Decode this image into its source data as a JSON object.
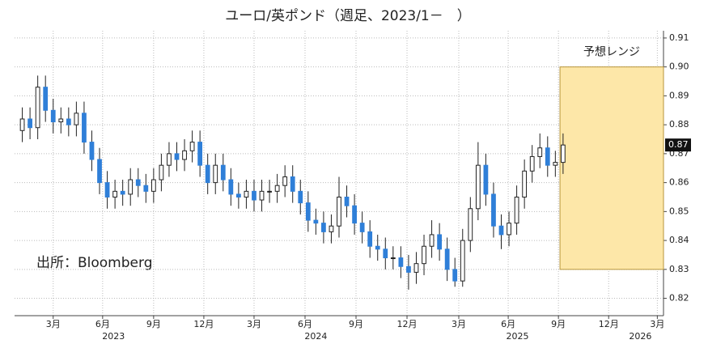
{
  "chart_data": {
    "type": "candlestick",
    "title": "ユーロ/英ポンド（週足、2023/1－　）",
    "source": "出所：Bloomberg",
    "up_color": "#ffffff",
    "down_color": "#2f7fd8",
    "xlim": [
      -1,
      83
    ],
    "xticks": [
      {
        "value": 4.0,
        "label": "3月"
      },
      {
        "value": 10.4,
        "label": "6月"
      },
      {
        "value": 17.0,
        "label": "9月"
      },
      {
        "value": 23.5,
        "label": "12月"
      },
      {
        "value": 30.0,
        "label": "3月"
      },
      {
        "value": 36.6,
        "label": "6月"
      },
      {
        "value": 43.2,
        "label": "9月"
      },
      {
        "value": 49.8,
        "label": "12月"
      },
      {
        "value": 56.5,
        "label": "3月"
      },
      {
        "value": 62.9,
        "label": "6月"
      },
      {
        "value": 69.4,
        "label": "9月"
      },
      {
        "value": 75.9,
        "label": "12月"
      },
      {
        "value": 82.2,
        "label": "3月"
      }
    ],
    "year_ticks": [
      {
        "value": 11.8,
        "label": "2023"
      },
      {
        "value": 38.0,
        "label": "2024"
      },
      {
        "value": 64.1,
        "label": "2025"
      },
      {
        "value": 80.0,
        "label": "2026"
      }
    ],
    "ylim": [
      0.814,
      0.9125
    ],
    "yticks": [
      0.82,
      0.83,
      0.84,
      0.85,
      0.86,
      0.87,
      0.88,
      0.89,
      {
        "value": 0.9,
        "label": "0.90"
      },
      0.91
    ],
    "grid": true,
    "open": [
      0.878,
      0.882,
      0.879,
      0.893,
      0.885,
      0.881,
      0.882,
      0.88,
      0.884,
      0.874,
      0.868,
      0.86,
      0.855,
      0.857,
      0.856,
      0.861,
      0.859,
      0.857,
      0.861,
      0.866,
      0.87,
      0.868,
      0.871,
      0.874,
      0.866,
      0.86,
      0.866,
      0.861,
      0.856,
      0.855,
      0.857,
      0.854,
      0.857,
      0.857,
      0.859,
      0.862,
      0.857,
      0.853,
      0.847,
      0.846,
      0.843,
      0.845,
      0.855,
      0.852,
      0.846,
      0.843,
      0.838,
      0.837,
      0.834,
      0.834,
      0.831,
      0.829,
      0.832,
      0.838,
      0.842,
      0.837,
      0.83,
      0.826,
      0.84,
      0.851,
      0.866,
      0.856,
      0.845,
      0.842,
      0.846,
      0.855,
      0.864,
      0.869,
      0.872,
      0.866,
      0.867
    ],
    "high": [
      0.886,
      0.886,
      0.897,
      0.897,
      0.889,
      0.886,
      0.886,
      0.888,
      0.888,
      0.878,
      0.872,
      0.864,
      0.861,
      0.861,
      0.865,
      0.865,
      0.863,
      0.865,
      0.87,
      0.874,
      0.874,
      0.875,
      0.878,
      0.878,
      0.87,
      0.87,
      0.87,
      0.865,
      0.86,
      0.861,
      0.861,
      0.861,
      0.861,
      0.863,
      0.866,
      0.866,
      0.861,
      0.857,
      0.851,
      0.85,
      0.849,
      0.862,
      0.859,
      0.856,
      0.85,
      0.847,
      0.842,
      0.841,
      0.838,
      0.838,
      0.835,
      0.836,
      0.842,
      0.847,
      0.846,
      0.841,
      0.834,
      0.844,
      0.855,
      0.874,
      0.87,
      0.86,
      0.849,
      0.85,
      0.859,
      0.868,
      0.873,
      0.877,
      0.876,
      0.871,
      0.877
    ],
    "low": [
      0.874,
      0.875,
      0.875,
      0.881,
      0.877,
      0.877,
      0.876,
      0.876,
      0.87,
      0.864,
      0.856,
      0.851,
      0.851,
      0.852,
      0.852,
      0.855,
      0.853,
      0.853,
      0.857,
      0.862,
      0.864,
      0.864,
      0.867,
      0.862,
      0.856,
      0.856,
      0.857,
      0.852,
      0.851,
      0.851,
      0.85,
      0.85,
      0.853,
      0.853,
      0.855,
      0.853,
      0.849,
      0.843,
      0.842,
      0.839,
      0.839,
      0.841,
      0.848,
      0.842,
      0.839,
      0.834,
      0.833,
      0.83,
      0.83,
      0.827,
      0.823,
      0.825,
      0.828,
      0.834,
      0.833,
      0.826,
      0.824,
      0.824,
      0.836,
      0.847,
      0.852,
      0.841,
      0.837,
      0.838,
      0.842,
      0.851,
      0.86,
      0.865,
      0.862,
      0.862,
      0.863
    ],
    "close": [
      0.882,
      0.879,
      0.893,
      0.885,
      0.881,
      0.882,
      0.88,
      0.884,
      0.874,
      0.868,
      0.86,
      0.855,
      0.857,
      0.856,
      0.861,
      0.859,
      0.857,
      0.861,
      0.866,
      0.87,
      0.868,
      0.871,
      0.874,
      0.866,
      0.86,
      0.866,
      0.861,
      0.856,
      0.855,
      0.857,
      0.854,
      0.857,
      0.857,
      0.859,
      0.862,
      0.857,
      0.853,
      0.847,
      0.846,
      0.843,
      0.845,
      0.855,
      0.852,
      0.846,
      0.843,
      0.838,
      0.837,
      0.834,
      0.834,
      0.831,
      0.829,
      0.832,
      0.838,
      0.842,
      0.837,
      0.83,
      0.826,
      0.84,
      0.851,
      0.866,
      0.856,
      0.845,
      0.842,
      0.846,
      0.855,
      0.864,
      0.869,
      0.872,
      0.866,
      0.867,
      0.873
    ],
    "last_price": {
      "value": 0.873,
      "label": "0.87"
    },
    "forecast_range": {
      "label": "予想レンジ",
      "xlim": [
        69.6,
        83
      ],
      "ylim": [
        0.83,
        0.9
      ],
      "color": "#fde7a8"
    }
  }
}
